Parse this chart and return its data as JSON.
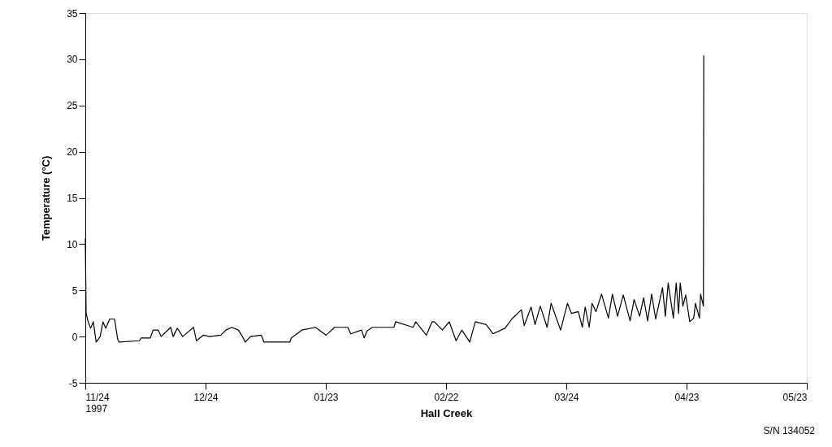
{
  "chart_data": {
    "type": "line",
    "xlabel": "Hall Creek",
    "ylabel": "Temperature  (°C)",
    "annotations": [
      "S/N 134052"
    ],
    "xlim": [
      "1997-11-24",
      "1998-05-23"
    ],
    "xticks": [
      {
        "value": "1997-11-24",
        "label": "11/24\n1997"
      },
      {
        "value": "1997-12-24",
        "label": "12/24"
      },
      {
        "value": "1998-01-23",
        "label": "01/23"
      },
      {
        "value": "1998-02-22",
        "label": "02/22"
      },
      {
        "value": "1998-03-24",
        "label": "03/24"
      },
      {
        "value": "1998-04-23",
        "label": "04/23"
      },
      {
        "value": "1998-05-23",
        "label": "05/23"
      }
    ],
    "ylim": [
      -5,
      35
    ],
    "yticks": [
      -5,
      0,
      5,
      10,
      15,
      20,
      25,
      30,
      35
    ],
    "grid": false,
    "marker": "none",
    "line_style": "solid",
    "x": [
      "1997-11-24T00:00",
      "1997-11-24T05:00",
      "1997-11-24T17:00",
      "1997-11-25T08:00",
      "1997-11-26T00:00",
      "1997-11-26T17:00",
      "1997-11-27T17:00",
      "1997-11-28T10:00",
      "1997-11-29T02:00",
      "1997-11-30T02:00",
      "1997-12-01T07:00",
      "1997-12-02T02:00",
      "1997-12-02T10:00",
      "1997-12-07T12:00",
      "1997-12-07T22:00",
      "1997-12-10T05:00",
      "1997-12-10T22:00",
      "1997-12-12T05:00",
      "1997-12-12T22:00",
      "1997-12-15T07:00",
      "1997-12-15T22:00",
      "1997-12-16T23:00",
      "1997-12-18T07:00",
      "1997-12-21T00:00",
      "1997-12-21T17:00",
      "1997-12-23T10:00",
      "1997-12-25T00:00",
      "1997-12-27T19:00",
      "1997-12-29T02:00",
      "1997-12-30T12:00",
      "1998-01-01T05:00",
      "1998-01-02T05:00",
      "1998-01-02T22:00",
      "1998-01-04T05:00",
      "1998-01-06T22:00",
      "1998-01-07T14:00",
      "1998-01-14T00:00",
      "1998-01-14T10:00",
      "1998-01-17T00:00",
      "1998-01-20T10:00",
      "1998-01-23T02:00",
      "1998-01-25T05:00",
      "1998-01-28T12:00",
      "1998-01-29T05:00",
      "1998-01-31T22:00",
      "1998-02-01T14:00",
      "1998-02-02T07:00",
      "1998-02-03T14:00",
      "1998-02-09T00:00",
      "1998-02-09T10:00",
      "1998-02-13T19:00",
      "1998-02-14T10:00",
      "1998-02-17T02:00",
      "1998-02-18T12:00",
      "1998-02-19T02:00",
      "1998-02-21T02:00",
      "1998-02-22T19:00",
      "1998-02-24T12:00",
      "1998-02-25T22:00",
      "1998-02-27T22:00",
      "1998-03-01T07:00",
      "1998-03-04T00:00",
      "1998-03-05T17:00",
      "1998-03-08T17:00",
      "1998-03-10T10:00",
      "1998-03-12T19:00",
      "1998-03-13T12:00",
      "1998-03-15T05:00",
      "1998-03-16T05:00",
      "1998-03-17T12:00",
      "1998-03-19T05:00",
      "1998-03-20T05:00",
      "1998-03-21T14:00",
      "1998-03-22T14:00",
      "1998-03-24T07:00",
      "1998-03-25T07:00",
      "1998-03-27T00:00",
      "1998-03-28T00:00",
      "1998-03-28T17:00",
      "1998-03-29T17:00",
      "1998-03-30T10:00",
      "1998-03-31T10:00",
      "1998-04-01T19:00",
      "1998-04-03T12:00",
      "1998-04-04T12:00",
      "1998-04-05T19:00",
      "1998-04-07T05:00",
      "1998-04-08T22:00",
      "1998-04-09T22:00",
      "1998-04-11T07:00",
      "1998-04-12T07:00",
      "1998-04-13T07:00",
      "1998-04-14T07:00",
      "1998-04-15T07:00",
      "1998-04-17T00:00",
      "1998-04-17T17:00",
      "1998-04-18T10:00",
      "1998-04-19T17:00",
      "1998-04-20T10:00",
      "1998-04-21T00:00",
      "1998-04-21T10:00",
      "1998-04-22T02:00",
      "1998-04-22T19:00",
      "1998-04-23T19:00",
      "1998-04-24T19:00",
      "1998-04-25T05:00",
      "1998-04-26T05:00",
      "1998-04-26T12:00",
      "1998-04-27T05:00",
      "1998-04-27T07:00"
    ],
    "series": [
      {
        "color": "#000000",
        "values": [
          10.6,
          2.5,
          1.6,
          0.9,
          1.6,
          -0.6,
          0,
          1.6,
          0.9,
          1.9,
          1.9,
          -0.3,
          -0.6,
          -0.45,
          -0.15,
          -0.15,
          0.7,
          0.7,
          0,
          1.0,
          0,
          0.9,
          0,
          1.0,
          -0.45,
          0.15,
          0,
          0.15,
          0.7,
          1.0,
          0.7,
          0,
          -0.6,
          0,
          0.15,
          -0.6,
          -0.6,
          -0.15,
          0.7,
          1.0,
          0.15,
          1.0,
          1.0,
          0.3,
          0.7,
          -0.15,
          0.6,
          1.0,
          1.0,
          1.6,
          1.0,
          1.6,
          0.15,
          1.6,
          1.6,
          0.7,
          1.6,
          -0.45,
          0.7,
          -0.6,
          1.6,
          1.3,
          0.3,
          0.9,
          1.9,
          2.9,
          1.2,
          3.2,
          1.3,
          3.3,
          1.0,
          3.6,
          1.9,
          0.7,
          3.6,
          2.5,
          2.7,
          1.0,
          3.2,
          1.0,
          3.6,
          2.7,
          4.6,
          2.0,
          4.6,
          2.2,
          4.5,
          1.7,
          4.0,
          2.2,
          4.2,
          1.7,
          4.6,
          1.9,
          5.3,
          2.2,
          5.8,
          2.0,
          5.8,
          2.5,
          5.8,
          3.3,
          4.5,
          1.6,
          2.0,
          3.6,
          2.0,
          4.6,
          3.3,
          30.4
        ]
      }
    ]
  }
}
